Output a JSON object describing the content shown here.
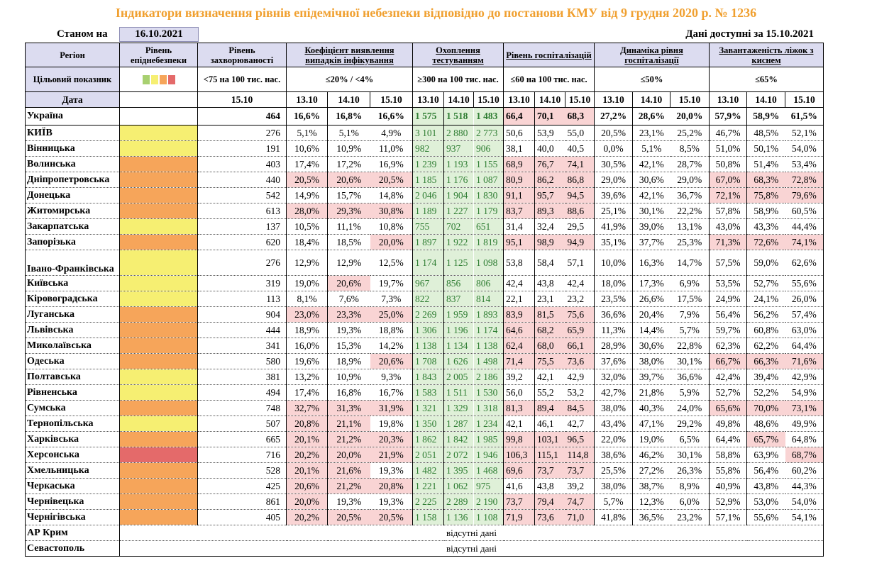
{
  "title": "Індикатори визначення рівнів епідемічної небезпеки відповідно до постанови КМУ від 9 грудня 2020 р. № 1236",
  "as_of_label": "Станом на",
  "as_of_date": "16.10.2021",
  "data_available": "Дані доступні за 15.10.2021",
  "colors": {
    "yellow": "#f6ef72",
    "orange": "#f6a55a",
    "red": "#e46a6a",
    "green_text": "#2e7d32",
    "highlight": "#f9d4d4",
    "header_bg": "#dcdcf0",
    "title_color": "#f0a030"
  },
  "legend_swatches": [
    "#a8d070",
    "#f6ef72",
    "#f6a55a",
    "#e46a6a"
  ],
  "headers": {
    "region": "Регіон",
    "level": "Рівень епіднебезпеки",
    "incidence": "Рівень захворюваності",
    "detection": "Коефіцієнт виявлення випадків інфікування",
    "testing": "Охоплення тестуванням",
    "hosp": "Рівень госпіталізацій",
    "hosp_dyn": "Динаміка рівня госпіталізації",
    "beds": "Завантаженість ліжок з киснем"
  },
  "targets": {
    "label": "Цільовий показник",
    "incidence": "<75 на 100 тис. нас.",
    "detection": "≤20% / <4%",
    "testing": "≥300 на 100 тис. нас.",
    "hosp": "≤60 на 100 тис. нас.",
    "hosp_dyn": "≤50%",
    "beds": "≤65%"
  },
  "date_row": {
    "label": "Дата",
    "incidence_date": "15.10",
    "dates": [
      "13.10",
      "14.10",
      "15.10"
    ]
  },
  "rows": [
    {
      "region": "Україна",
      "level": "",
      "inc": "464",
      "det": [
        "16,6%",
        "16,8%",
        "16,6%"
      ],
      "test": [
        "1 575",
        "1 518",
        "1 483"
      ],
      "hosp": [
        "66,4",
        "70,1",
        "68,3"
      ],
      "dyn": [
        "27,2%",
        "28,6%",
        "20,0%"
      ],
      "beds": [
        "57,9%",
        "58,9%",
        "61,5%"
      ]
    },
    {
      "region": "КИЇВ",
      "level": "yellow",
      "inc": "276",
      "det": [
        "5,1%",
        "5,1%",
        "4,9%"
      ],
      "test": [
        "3 101",
        "2 880",
        "2 773"
      ],
      "hosp": [
        "50,6",
        "53,9",
        "55,0"
      ],
      "dyn": [
        "20,5%",
        "23,1%",
        "25,2%"
      ],
      "beds": [
        "46,7%",
        "48,5%",
        "52,1%"
      ]
    },
    {
      "region": "Вінницька",
      "level": "yellow",
      "inc": "191",
      "det": [
        "10,6%",
        "10,9%",
        "11,0%"
      ],
      "test": [
        "982",
        "937",
        "906"
      ],
      "hosp": [
        "38,1",
        "40,0",
        "40,5"
      ],
      "dyn": [
        "0,0%",
        "5,1%",
        "8,5%"
      ],
      "beds": [
        "51,0%",
        "50,1%",
        "54,0%"
      ]
    },
    {
      "region": "Волинська",
      "level": "orange",
      "inc": "403",
      "det": [
        "17,4%",
        "17,2%",
        "16,9%"
      ],
      "test": [
        "1 239",
        "1 193",
        "1 155"
      ],
      "hosp": [
        "68,9",
        "76,7",
        "74,1"
      ],
      "dyn": [
        "30,5%",
        "42,1%",
        "28,7%"
      ],
      "beds": [
        "50,8%",
        "51,4%",
        "53,4%"
      ]
    },
    {
      "region": "Дніпропетровська",
      "level": "orange",
      "inc": "440",
      "det": [
        "20,5%",
        "20,6%",
        "20,5%"
      ],
      "test": [
        "1 185",
        "1 176",
        "1 087"
      ],
      "hosp": [
        "80,9",
        "86,2",
        "86,8"
      ],
      "dyn": [
        "29,0%",
        "30,6%",
        "29,0%"
      ],
      "beds": [
        "67,0%",
        "68,3%",
        "72,8%"
      ]
    },
    {
      "region": "Донецька",
      "level": "orange",
      "inc": "542",
      "det": [
        "14,9%",
        "15,7%",
        "14,8%"
      ],
      "test": [
        "2 046",
        "1 904",
        "1 830"
      ],
      "hosp": [
        "91,1",
        "95,7",
        "94,5"
      ],
      "dyn": [
        "39,6%",
        "42,1%",
        "36,7%"
      ],
      "beds": [
        "72,1%",
        "75,8%",
        "79,6%"
      ]
    },
    {
      "region": "Житомирська",
      "level": "orange",
      "inc": "613",
      "det": [
        "28,0%",
        "29,3%",
        "30,8%"
      ],
      "test": [
        "1 189",
        "1 227",
        "1 179"
      ],
      "hosp": [
        "83,7",
        "89,3",
        "88,6"
      ],
      "dyn": [
        "25,1%",
        "30,1%",
        "22,2%"
      ],
      "beds": [
        "57,8%",
        "58,9%",
        "60,5%"
      ]
    },
    {
      "region": "Закарпатська",
      "level": "yellow",
      "inc": "137",
      "det": [
        "10,5%",
        "11,1%",
        "10,8%"
      ],
      "test": [
        "755",
        "702",
        "651"
      ],
      "hosp": [
        "31,4",
        "32,4",
        "29,5"
      ],
      "dyn": [
        "41,9%",
        "39,0%",
        "13,1%"
      ],
      "beds": [
        "43,0%",
        "43,3%",
        "44,4%"
      ]
    },
    {
      "region": "Запорізька",
      "level": "orange",
      "inc": "620",
      "det": [
        "18,4%",
        "18,5%",
        "20,0%"
      ],
      "test": [
        "1 897",
        "1 922",
        "1 819"
      ],
      "hosp": [
        "95,1",
        "98,9",
        "94,9"
      ],
      "dyn": [
        "35,1%",
        "37,7%",
        "25,3%"
      ],
      "beds": [
        "71,3%",
        "72,6%",
        "74,1%"
      ]
    },
    {
      "region": "Івано-Франківська",
      "level": "yellow",
      "inc": "276",
      "det": [
        "12,9%",
        "12,9%",
        "12,5%"
      ],
      "test": [
        "1 174",
        "1 125",
        "1 098"
      ],
      "hosp": [
        "53,8",
        "58,4",
        "57,1"
      ],
      "dyn": [
        "10,0%",
        "16,3%",
        "14,7%"
      ],
      "beds": [
        "57,5%",
        "59,0%",
        "62,6%"
      ]
    },
    {
      "region": "Київська",
      "level": "yellow",
      "inc": "319",
      "det": [
        "19,0%",
        "20,6%",
        "19,7%"
      ],
      "test": [
        "967",
        "856",
        "806"
      ],
      "hosp": [
        "42,4",
        "43,8",
        "42,4"
      ],
      "dyn": [
        "18,0%",
        "17,3%",
        "6,9%"
      ],
      "beds": [
        "53,5%",
        "52,7%",
        "55,6%"
      ]
    },
    {
      "region": "Кіровоградська",
      "level": "yellow",
      "inc": "113",
      "det": [
        "8,1%",
        "7,6%",
        "7,3%"
      ],
      "test": [
        "822",
        "837",
        "814"
      ],
      "hosp": [
        "22,1",
        "23,1",
        "23,2"
      ],
      "dyn": [
        "23,5%",
        "26,6%",
        "17,5%"
      ],
      "beds": [
        "24,9%",
        "24,1%",
        "26,0%"
      ]
    },
    {
      "region": "Луганська",
      "level": "orange",
      "inc": "904",
      "det": [
        "23,0%",
        "23,3%",
        "25,0%"
      ],
      "test": [
        "2 269",
        "1 959",
        "1 893"
      ],
      "hosp": [
        "83,9",
        "81,5",
        "75,6"
      ],
      "dyn": [
        "36,6%",
        "20,4%",
        "7,9%"
      ],
      "beds": [
        "56,4%",
        "56,2%",
        "57,4%"
      ]
    },
    {
      "region": "Львівська",
      "level": "orange",
      "inc": "444",
      "det": [
        "18,9%",
        "19,3%",
        "18,8%"
      ],
      "test": [
        "1 306",
        "1 196",
        "1 174"
      ],
      "hosp": [
        "64,6",
        "68,2",
        "65,9"
      ],
      "dyn": [
        "11,3%",
        "14,4%",
        "5,7%"
      ],
      "beds": [
        "59,7%",
        "60,8%",
        "63,0%"
      ]
    },
    {
      "region": "Миколаївська",
      "level": "orange",
      "inc": "341",
      "det": [
        "16,0%",
        "15,3%",
        "14,2%"
      ],
      "test": [
        "1 138",
        "1 134",
        "1 138"
      ],
      "hosp": [
        "62,4",
        "68,0",
        "66,1"
      ],
      "dyn": [
        "28,9%",
        "30,6%",
        "22,8%"
      ],
      "beds": [
        "62,3%",
        "62,2%",
        "64,4%"
      ]
    },
    {
      "region": "Одеська",
      "level": "orange",
      "inc": "580",
      "det": [
        "19,6%",
        "18,9%",
        "20,6%"
      ],
      "test": [
        "1 708",
        "1 626",
        "1 498"
      ],
      "hosp": [
        "71,4",
        "75,5",
        "73,6"
      ],
      "dyn": [
        "37,6%",
        "38,0%",
        "30,1%"
      ],
      "beds": [
        "66,7%",
        "66,3%",
        "71,6%"
      ]
    },
    {
      "region": "Полтавська",
      "level": "yellow",
      "inc": "381",
      "det": [
        "13,2%",
        "10,9%",
        "9,3%"
      ],
      "test": [
        "1 843",
        "2 005",
        "2 186"
      ],
      "hosp": [
        "39,2",
        "42,1",
        "42,9"
      ],
      "dyn": [
        "32,0%",
        "39,7%",
        "36,6%"
      ],
      "beds": [
        "42,4%",
        "39,4%",
        "42,9%"
      ]
    },
    {
      "region": "Рівненська",
      "level": "yellow",
      "inc": "494",
      "det": [
        "17,4%",
        "16,8%",
        "16,7%"
      ],
      "test": [
        "1 583",
        "1 511",
        "1 530"
      ],
      "hosp": [
        "56,0",
        "55,2",
        "53,2"
      ],
      "dyn": [
        "42,7%",
        "21,8%",
        "5,9%"
      ],
      "beds": [
        "52,7%",
        "52,2%",
        "54,9%"
      ]
    },
    {
      "region": "Сумська",
      "level": "orange",
      "inc": "748",
      "det": [
        "32,7%",
        "31,3%",
        "31,9%"
      ],
      "test": [
        "1 321",
        "1 329",
        "1 318"
      ],
      "hosp": [
        "81,3",
        "89,4",
        "84,5"
      ],
      "dyn": [
        "38,0%",
        "40,3%",
        "24,0%"
      ],
      "beds": [
        "65,6%",
        "70,0%",
        "73,1%"
      ]
    },
    {
      "region": "Тернопільська",
      "level": "yellow",
      "inc": "507",
      "det": [
        "20,8%",
        "21,1%",
        "19,8%"
      ],
      "test": [
        "1 350",
        "1 287",
        "1 234"
      ],
      "hosp": [
        "42,1",
        "46,1",
        "42,7"
      ],
      "dyn": [
        "43,4%",
        "47,1%",
        "29,2%"
      ],
      "beds": [
        "49,8%",
        "48,6%",
        "49,9%"
      ]
    },
    {
      "region": "Харківська",
      "level": "orange",
      "inc": "665",
      "det": [
        "20,1%",
        "21,2%",
        "20,3%"
      ],
      "test": [
        "1 862",
        "1 842",
        "1 985"
      ],
      "hosp": [
        "99,8",
        "103,1",
        "96,5"
      ],
      "dyn": [
        "22,0%",
        "19,0%",
        "6,5%"
      ],
      "beds": [
        "64,4%",
        "65,7%",
        "64,8%"
      ]
    },
    {
      "region": "Херсонська",
      "level": "red",
      "inc": "716",
      "det": [
        "20,2%",
        "20,0%",
        "21,9%"
      ],
      "test": [
        "2 051",
        "2 072",
        "1 946"
      ],
      "hosp": [
        "106,3",
        "115,1",
        "114,8"
      ],
      "dyn": [
        "38,6%",
        "46,2%",
        "30,1%"
      ],
      "beds": [
        "58,8%",
        "63,9%",
        "68,7%"
      ]
    },
    {
      "region": "Хмельницька",
      "level": "orange",
      "inc": "528",
      "det": [
        "20,1%",
        "21,6%",
        "19,3%"
      ],
      "test": [
        "1 482",
        "1 395",
        "1 468"
      ],
      "hosp": [
        "69,6",
        "73,7",
        "73,7"
      ],
      "dyn": [
        "25,5%",
        "27,2%",
        "26,3%"
      ],
      "beds": [
        "55,8%",
        "56,4%",
        "60,2%"
      ]
    },
    {
      "region": "Черкаська",
      "level": "orange",
      "inc": "425",
      "det": [
        "20,6%",
        "21,2%",
        "20,8%"
      ],
      "test": [
        "1 221",
        "1 062",
        "975"
      ],
      "hosp": [
        "41,6",
        "43,8",
        "39,2"
      ],
      "dyn": [
        "38,0%",
        "38,7%",
        "8,9%"
      ],
      "beds": [
        "40,9%",
        "43,8%",
        "44,3%"
      ]
    },
    {
      "region": "Чернівецька",
      "level": "orange",
      "inc": "861",
      "det": [
        "20,0%",
        "19,3%",
        "19,3%"
      ],
      "test": [
        "2 225",
        "2 289",
        "2 190"
      ],
      "hosp": [
        "73,7",
        "79,4",
        "74,7"
      ],
      "dyn": [
        "5,7%",
        "12,3%",
        "6,0%"
      ],
      "beds": [
        "52,9%",
        "53,0%",
        "54,0%"
      ]
    },
    {
      "region": "Чернігівська",
      "level": "orange",
      "inc": "405",
      "det": [
        "20,2%",
        "20,5%",
        "20,5%"
      ],
      "test": [
        "1 158",
        "1 136",
        "1 108"
      ],
      "hosp": [
        "71,9",
        "73,6",
        "71,0"
      ],
      "dyn": [
        "41,8%",
        "36,5%",
        "23,2%"
      ],
      "beds": [
        "57,1%",
        "55,6%",
        "54,1%"
      ]
    }
  ],
  "no_data_rows": [
    {
      "region": "АР Крим",
      "text": "відсутні дані"
    },
    {
      "region": "Севастополь",
      "text": "відсутні дані"
    }
  ]
}
